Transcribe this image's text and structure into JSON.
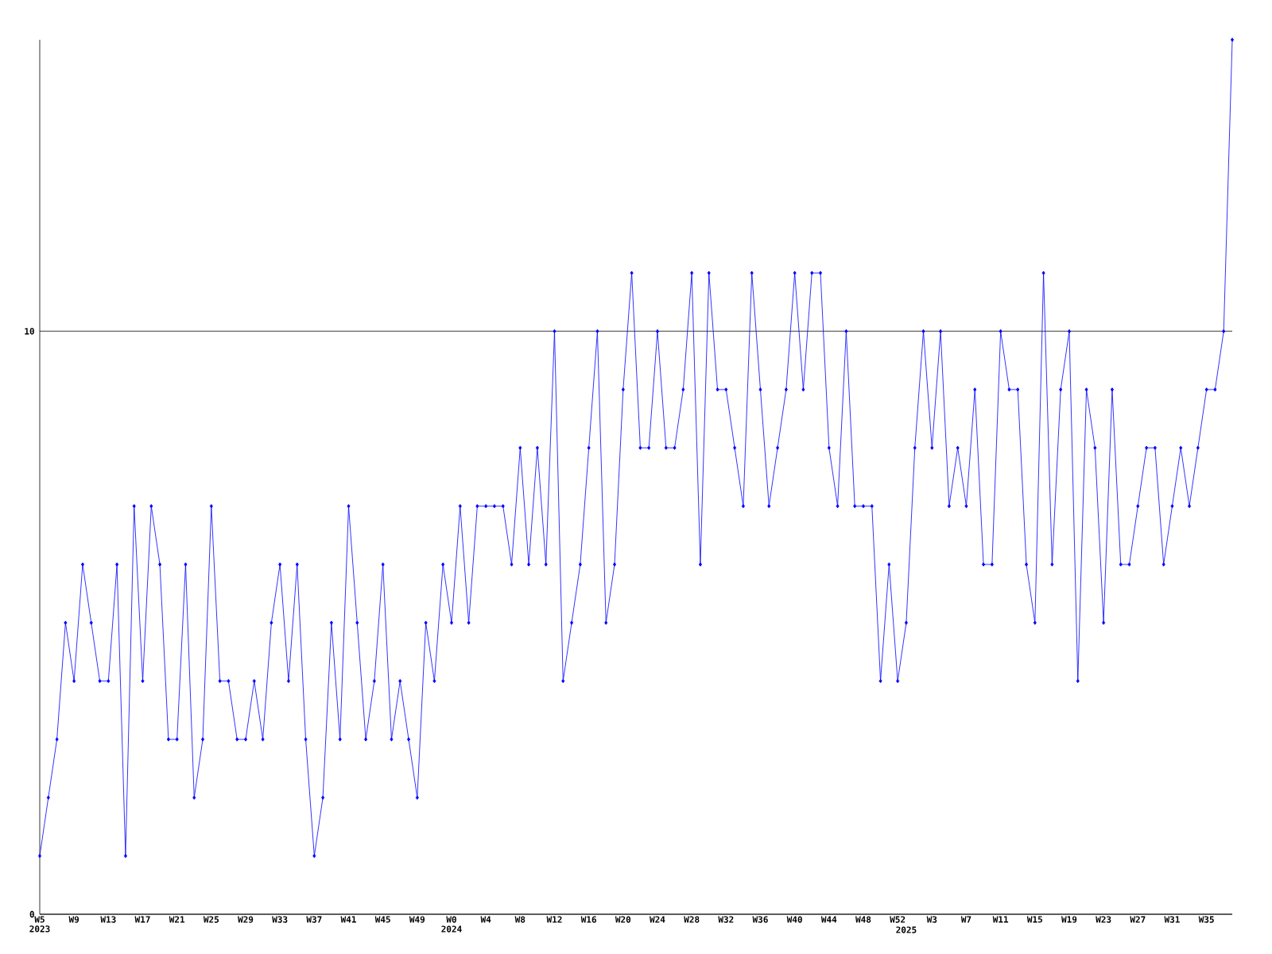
{
  "chart_data": {
    "type": "line",
    "categories": [
      "W5 2023",
      null,
      null,
      null,
      "W9",
      null,
      null,
      null,
      "W13",
      null,
      null,
      null,
      "W17",
      null,
      null,
      null,
      "W21",
      null,
      null,
      null,
      "W25",
      null,
      null,
      null,
      "W29",
      null,
      null,
      null,
      "W33",
      null,
      null,
      null,
      "W37",
      null,
      null,
      null,
      "W41",
      null,
      null,
      null,
      "W45",
      null,
      null,
      null,
      "W49",
      null,
      null,
      null,
      "W0 2024",
      null,
      null,
      null,
      "W4",
      null,
      null,
      null,
      "W8",
      null,
      null,
      null,
      "W12",
      null,
      null,
      null,
      "W16",
      null,
      null,
      null,
      "W20",
      null,
      null,
      null,
      "W24",
      null,
      null,
      null,
      "W28",
      null,
      null,
      null,
      "W32",
      null,
      null,
      null,
      "W36",
      null,
      null,
      null,
      "W40",
      null,
      null,
      null,
      "W44",
      null,
      null,
      null,
      "W48",
      null,
      null,
      null,
      "W52",
      "2025",
      null,
      null,
      "W3",
      null,
      null,
      null,
      "W7",
      null,
      null,
      null,
      "W11",
      null,
      null,
      null,
      "W15",
      null,
      null,
      null,
      "W19",
      null,
      null,
      null,
      "W23",
      null,
      null,
      null,
      "W27",
      null,
      null,
      null,
      "W31",
      null,
      null,
      null,
      "W35",
      null,
      null,
      null
    ],
    "values": [
      1,
      2,
      3,
      5,
      4,
      6,
      5,
      4,
      4,
      6,
      1,
      7,
      4,
      7,
      6,
      3,
      3,
      6,
      2,
      3,
      7,
      4,
      4,
      3,
      3,
      4,
      3,
      5,
      6,
      4,
      6,
      3,
      1,
      2,
      5,
      3,
      7,
      5,
      3,
      4,
      6,
      3,
      4,
      3,
      2,
      5,
      4,
      6,
      5,
      7,
      5,
      7,
      7,
      7,
      7,
      6,
      8,
      6,
      8,
      6,
      10,
      4,
      5,
      6,
      8,
      10,
      5,
      6,
      9,
      11,
      8,
      8,
      10,
      8,
      8,
      9,
      11,
      6,
      11,
      9,
      9,
      8,
      7,
      11,
      9,
      7,
      8,
      9,
      11,
      9,
      11,
      11,
      8,
      7,
      10,
      7,
      7,
      7,
      4,
      6,
      4,
      5,
      8,
      10,
      8,
      10,
      7,
      8,
      7,
      9,
      6,
      6,
      10,
      9,
      9,
      6,
      5,
      11,
      6,
      9,
      10,
      4,
      9,
      8,
      5,
      9,
      6,
      6,
      7,
      8,
      8,
      6,
      7,
      8,
      7,
      8,
      9,
      9,
      10,
      15
    ],
    "color": "#0000ff",
    "ylim": [
      0,
      15
    ],
    "yticks": [
      0,
      10
    ],
    "grid": "y",
    "marker": "diamond",
    "line_style": "solid"
  }
}
